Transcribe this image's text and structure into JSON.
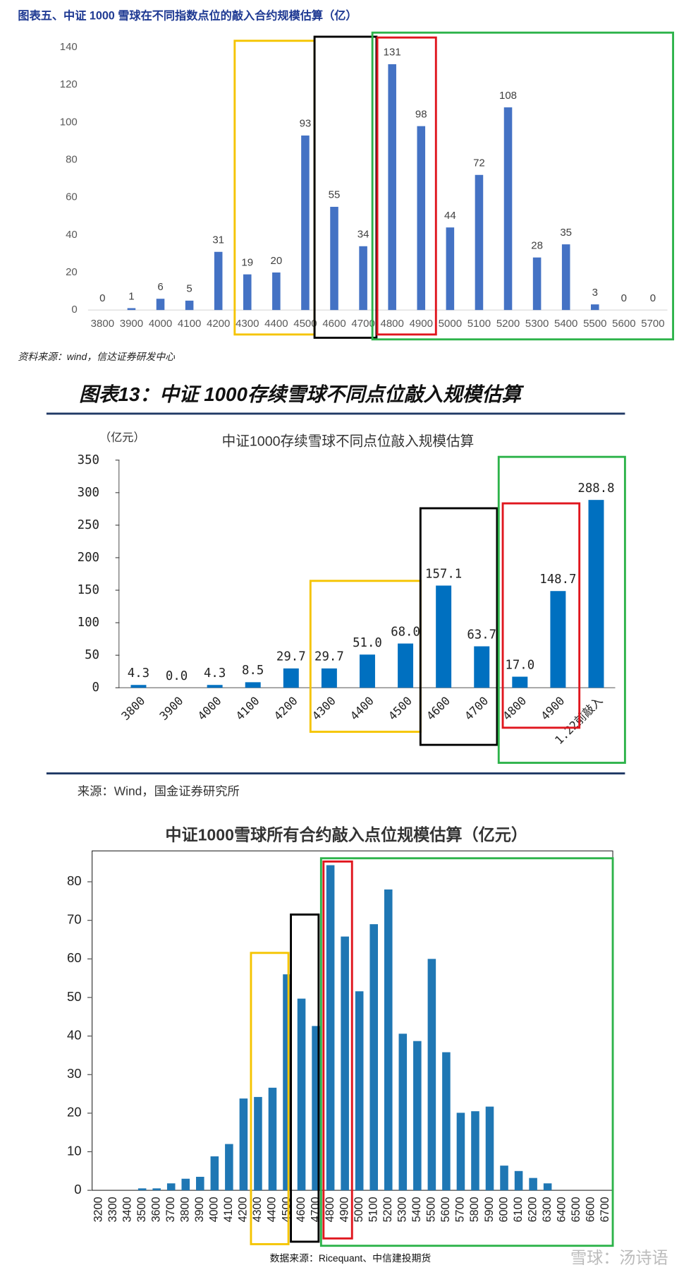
{
  "chart_data": [
    {
      "type": "bar",
      "title": "图表五、中证 1000 雪球在不同指数点位的敲入合约规模估算（亿）",
      "categories": [
        "3800",
        "3900",
        "4000",
        "4100",
        "4200",
        "4300",
        "4400",
        "4500",
        "4600",
        "4700",
        "4800",
        "4900",
        "5000",
        "5100",
        "5200",
        "5300",
        "5400",
        "5500",
        "5600",
        "5700"
      ],
      "values": [
        0,
        1,
        6,
        5,
        31,
        19,
        20,
        93,
        55,
        34,
        131,
        98,
        44,
        72,
        108,
        28,
        35,
        3,
        0,
        0
      ],
      "color": "#4472c4",
      "ylim": [
        0,
        140
      ],
      "yticks": [
        0,
        20,
        40,
        60,
        80,
        100,
        120,
        140
      ],
      "source": "资料来源：wind，信达证券研发中心"
    },
    {
      "type": "bar",
      "heading": "图表13：中证 1000存续雪球不同点位敲入规模估算",
      "title": "中证1000存续雪球不同点位敲入规模估算",
      "y_unit": "（亿元）",
      "categories": [
        "3800",
        "3900",
        "4000",
        "4100",
        "4200",
        "4300",
        "4400",
        "4500",
        "4600",
        "4700",
        "4800",
        "4900",
        "1.22前敲入"
      ],
      "values": [
        4.3,
        0.0,
        4.3,
        8.5,
        29.7,
        29.7,
        51.0,
        68.0,
        157.1,
        63.7,
        17.0,
        148.7,
        288.8
      ],
      "value_labels": [
        "4.3",
        "0.0",
        "4.3",
        "8.5",
        "29.7",
        "29.7",
        "51.0",
        "68.0",
        "157.1",
        "63.7",
        "17.0",
        "148.7",
        "288.8"
      ],
      "color": "#0070c0",
      "ylim": [
        0,
        350
      ],
      "yticks": [
        0,
        50,
        100,
        150,
        200,
        250,
        300,
        350
      ],
      "source": "来源：Wind，国金证券研究所"
    },
    {
      "type": "bar",
      "title": "中证1000雪球所有合约敲入点位规模估算（亿元）",
      "categories": [
        "3200",
        "3300",
        "3400",
        "3500",
        "3600",
        "3700",
        "3800",
        "3900",
        "4000",
        "4100",
        "4200",
        "4300",
        "4400",
        "4500",
        "4600",
        "4700",
        "4800",
        "4900",
        "5000",
        "5100",
        "5200",
        "5300",
        "5400",
        "5500",
        "5600",
        "5700",
        "5800",
        "5900",
        "6000",
        "6100",
        "6200",
        "6300",
        "6400",
        "6500",
        "6600",
        "6700"
      ],
      "values": [
        0,
        0,
        0,
        0.5,
        0.5,
        1.8,
        3,
        3.5,
        8.8,
        12,
        23.8,
        24.2,
        26.6,
        56,
        49.7,
        42.6,
        84.3,
        65.8,
        51.6,
        69,
        78,
        40.6,
        38.7,
        60,
        35.8,
        20.1,
        20.5,
        21.7,
        6.4,
        5,
        3.2,
        1.8,
        0,
        0,
        0,
        0
      ],
      "color": "#1f77b4",
      "ylim": [
        0,
        88
      ],
      "yticks": [
        0,
        10,
        20,
        30,
        40,
        50,
        60,
        70,
        80
      ],
      "source": "数据来源：Ricequant、中信建投期货"
    }
  ],
  "watermark": "雪球：汤诗语"
}
